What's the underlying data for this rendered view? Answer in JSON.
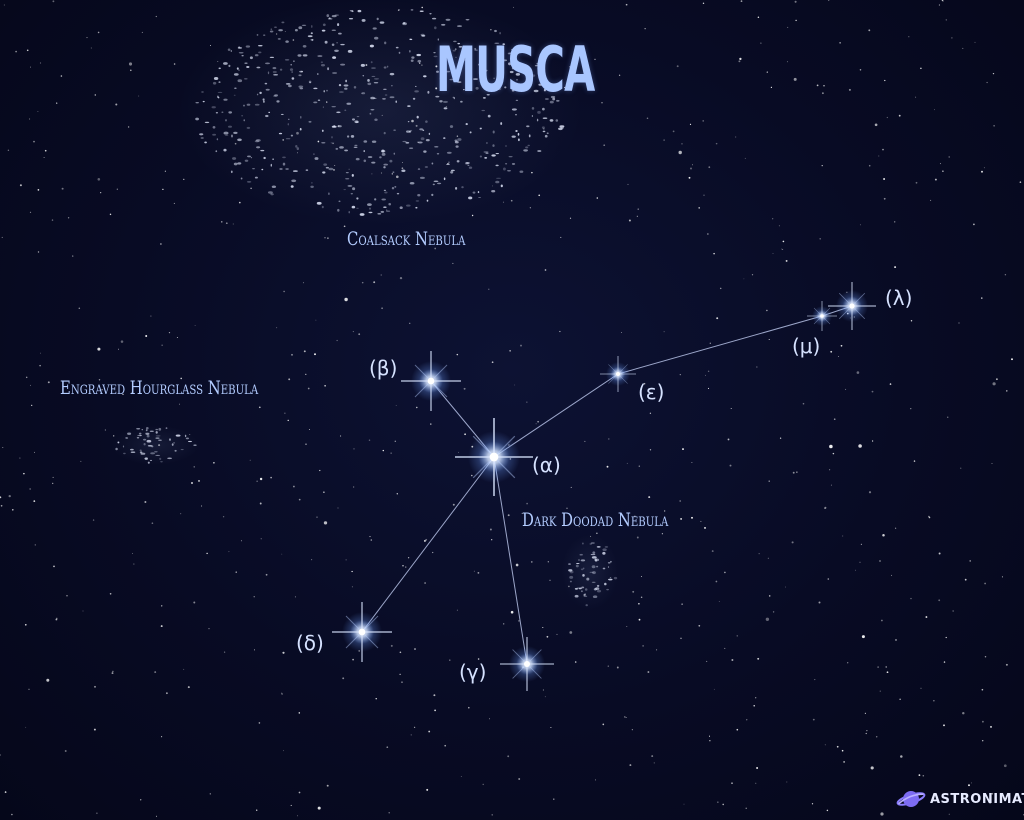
{
  "title": "MUSCA",
  "nebulae": [
    {
      "id": "coalsack",
      "label": "Coalsack Nebula"
    },
    {
      "id": "hourglass",
      "label": "Engraved Hourglass Nebula"
    },
    {
      "id": "doodad",
      "label": "Dark Doodad Nebula"
    }
  ],
  "stars": [
    {
      "id": "alpha",
      "label": "(α)"
    },
    {
      "id": "beta",
      "label": "(β)"
    },
    {
      "id": "gamma",
      "label": "(γ)"
    },
    {
      "id": "delta",
      "label": "(δ)"
    },
    {
      "id": "epsilon",
      "label": "(ε)"
    },
    {
      "id": "mu",
      "label": "(μ)"
    },
    {
      "id": "lambda",
      "label": "(λ)"
    }
  ],
  "constellation_lines": [
    [
      "beta",
      "alpha"
    ],
    [
      "alpha",
      "delta"
    ],
    [
      "alpha",
      "gamma"
    ],
    [
      "alpha",
      "epsilon"
    ],
    [
      "epsilon",
      "mu"
    ],
    [
      "mu",
      "lambda"
    ]
  ],
  "brand": {
    "name": "ASTRONIMATE",
    "icon": "planet-icon"
  },
  "colors": {
    "background": "#070a1f",
    "label": "#a9c6ff",
    "star": "#ffffff",
    "glow": "#6fa0ff"
  }
}
